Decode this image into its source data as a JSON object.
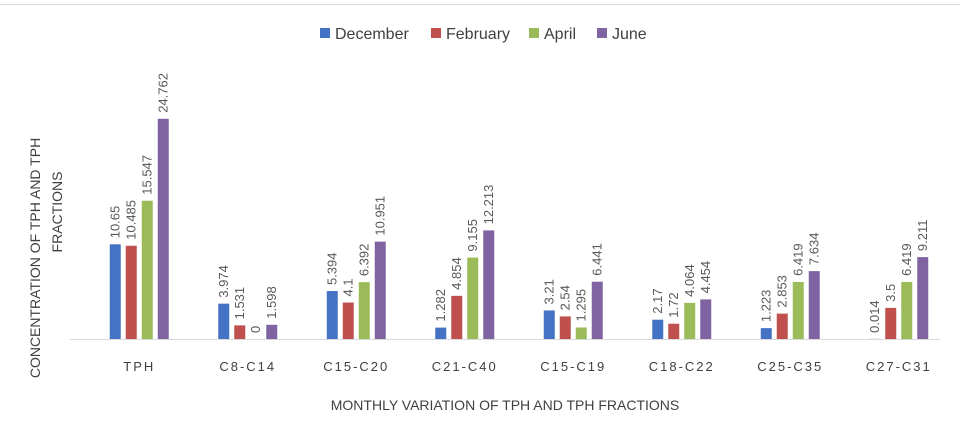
{
  "chart_data": {
    "type": "bar",
    "title": "",
    "xlabel": "MONTHLY VARIATION OF TPH AND TPH FRACTIONS",
    "ylabel_lines": [
      "CONCENTRATION OF TPH AND TPH",
      "FRACTIONS"
    ],
    "ylim": [
      0,
      28
    ],
    "grid": false,
    "legend_position": "top-center",
    "categories": [
      "TPH",
      "C8-C14",
      "C15-C20",
      "C21-C40",
      "C15-C19",
      "C18-C22",
      "C25-C35",
      "C27-C31"
    ],
    "series": [
      {
        "name": "December",
        "color": "#4472c4",
        "values": [
          10.65,
          3.974,
          5.394,
          1.282,
          3.21,
          2.17,
          1.223,
          0.014
        ]
      },
      {
        "name": "February",
        "color": "#c0504d",
        "values": [
          10.485,
          1.531,
          4.1,
          4.854,
          2.54,
          1.72,
          2.853,
          3.5
        ]
      },
      {
        "name": "April",
        "color": "#9bbb59",
        "values": [
          15.547,
          0,
          6.392,
          9.155,
          1.295,
          4.064,
          6.419,
          6.419
        ]
      },
      {
        "name": "June",
        "color": "#8064a2",
        "values": [
          24.762,
          1.598,
          10.951,
          12.213,
          6.441,
          4.454,
          7.634,
          9.211
        ]
      }
    ]
  }
}
